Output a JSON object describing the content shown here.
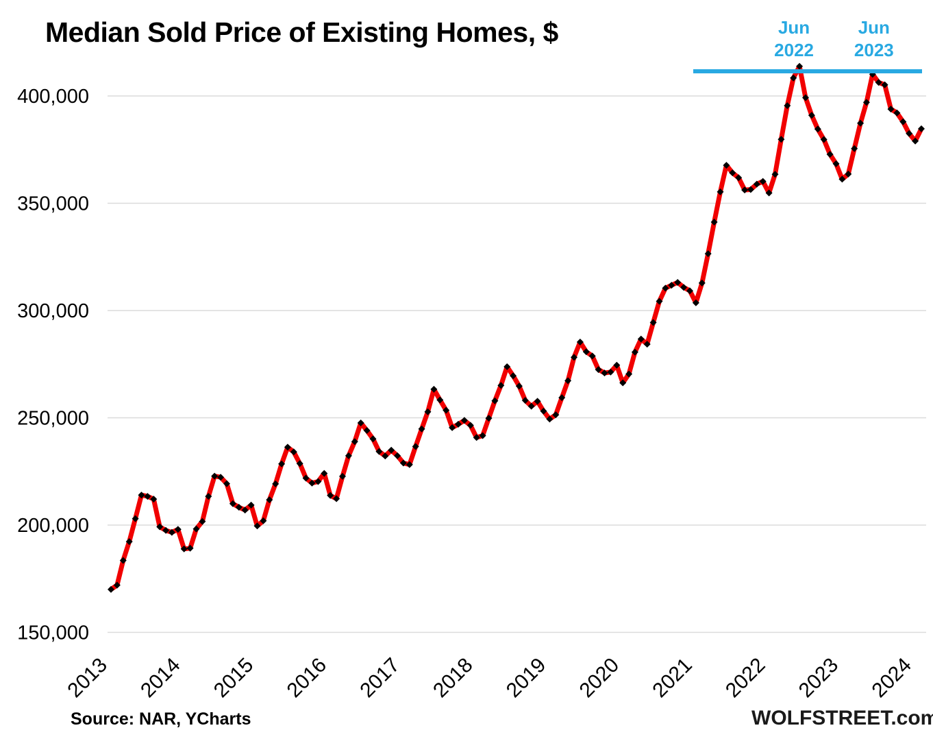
{
  "title": "Median Sold Price of Existing Homes, $",
  "footer": {
    "source": "Source: NAR, YCharts",
    "watermark": "WOLFSTREET.com"
  },
  "annotations": {
    "peak_labels": [
      {
        "line1": "Jun",
        "line2": "2022",
        "month": "2022-06"
      },
      {
        "line1": "Jun",
        "line2": "2023",
        "month": "2023-06"
      }
    ],
    "reference_line": {
      "value": 411500,
      "span_months": [
        "2020-12",
        "2024-02"
      ],
      "color": "#29A9E2"
    }
  },
  "chart_data": {
    "type": "line",
    "title": "Median Sold Price of Existing Homes, $",
    "x_start": "2013-01",
    "x_end": "2024-02",
    "x_tick_labels": [
      "2013",
      "2014",
      "2015",
      "2016",
      "2017",
      "2018",
      "2019",
      "2020",
      "2021",
      "2022",
      "2023",
      "2024"
    ],
    "y_ticks": [
      {
        "value": 150000,
        "label": "150,000"
      },
      {
        "value": 200000,
        "label": "200,000"
      },
      {
        "value": 250000,
        "label": "250,000"
      },
      {
        "value": 300000,
        "label": "300,000"
      },
      {
        "value": 350000,
        "label": "350,000"
      },
      {
        "value": 400000,
        "label": "400,000"
      }
    ],
    "ylim": [
      150000,
      417000
    ],
    "grid": "horizontal",
    "legend": "none",
    "series": [
      {
        "name": "Median sold price of existing homes, $",
        "frequency": "monthly",
        "data": [
          {
            "year": 2013,
            "values": [
              170000,
              172000,
              183500,
              192300,
              203000,
              214000,
              213400,
              212100,
              199200,
              197500,
              196600,
              198000
            ]
          },
          {
            "year": 2014,
            "values": [
              188900,
              189200,
              198200,
              201700,
              213400,
              222800,
              222300,
              219300,
              210000,
              208300,
              207000,
              209300
            ]
          },
          {
            "year": 2015,
            "values": [
              199600,
              202000,
              211800,
              219200,
              228500,
              236300,
              234100,
              228700,
              221900,
              219600,
              220300,
              224100
            ]
          },
          {
            "year": 2016,
            "values": [
              213800,
              212300,
              222700,
              232300,
              238900,
              247600,
              244100,
              240200,
              234300,
              232200,
              234900,
              232300
            ]
          },
          {
            "year": 2017,
            "values": [
              228900,
              228200,
              236600,
              244800,
              252800,
              263300,
              258300,
              253500,
              245400,
              247000,
              248800,
              246500
            ]
          },
          {
            "year": 2018,
            "values": [
              240800,
              241700,
              249800,
              257900,
              265100,
              273800,
              269600,
              264800,
              258100,
              255400,
              257700,
              253100
            ]
          },
          {
            "year": 2019,
            "values": [
              249400,
              251400,
              259400,
              267300,
              278200,
              285300,
              280800,
              278800,
              272500,
              270900,
              271300,
              274500
            ]
          },
          {
            "year": 2020,
            "values": [
              266300,
              270400,
              280600,
              286700,
              284300,
              294400,
              304300,
              310400,
              311800,
              313100,
              310800,
              309200
            ]
          },
          {
            "year": 2021,
            "values": [
              303600,
              312800,
              326500,
              341200,
              355300,
              367700,
              364200,
              361900,
              356200,
              356400,
              358900,
              360200
            ]
          },
          {
            "year": 2022,
            "values": [
              354800,
              363500,
              379800,
              395500,
              408400,
              413800,
              399200,
              391000,
              384600,
              379700,
              372800,
              368400
            ]
          },
          {
            "year": 2023,
            "values": [
              361200,
              363600,
              375500,
              387300,
              397000,
              410100,
              406300,
              405200,
              393900,
              392100,
              388000,
              382500
            ]
          },
          {
            "year": 2024,
            "values": [
              379000,
              384700
            ]
          }
        ]
      }
    ],
    "colors": {
      "line": "#F10000",
      "markers": "#000000",
      "grid": "#DBDBDB",
      "annotation": "#29A9E2",
      "text": "#000000"
    }
  }
}
